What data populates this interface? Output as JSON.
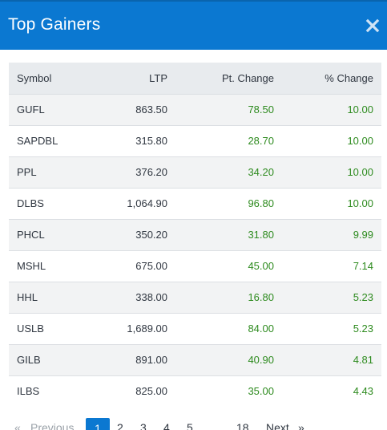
{
  "modal": {
    "title": "Top Gainers"
  },
  "table": {
    "headers": {
      "symbol": "Symbol",
      "ltp": "LTP",
      "pt_change": "Pt. Change",
      "pct_change": "% Change"
    },
    "rows": [
      {
        "symbol": "GUFL",
        "ltp": "863.50",
        "pt_change": "78.50",
        "pct_change": "10.00"
      },
      {
        "symbol": "SAPDBL",
        "ltp": "315.80",
        "pt_change": "28.70",
        "pct_change": "10.00"
      },
      {
        "symbol": "PPL",
        "ltp": "376.20",
        "pt_change": "34.20",
        "pct_change": "10.00"
      },
      {
        "symbol": "DLBS",
        "ltp": "1,064.90",
        "pt_change": "96.80",
        "pct_change": "10.00"
      },
      {
        "symbol": "PHCL",
        "ltp": "350.20",
        "pt_change": "31.80",
        "pct_change": "9.99"
      },
      {
        "symbol": "MSHL",
        "ltp": "675.00",
        "pt_change": "45.00",
        "pct_change": "7.14"
      },
      {
        "symbol": "HHL",
        "ltp": "338.00",
        "pt_change": "16.80",
        "pct_change": "5.23"
      },
      {
        "symbol": "USLB",
        "ltp": "1,689.00",
        "pt_change": "84.00",
        "pct_change": "5.23"
      },
      {
        "symbol": "GILB",
        "ltp": "891.00",
        "pt_change": "40.90",
        "pct_change": "4.81"
      },
      {
        "symbol": "ILBS",
        "ltp": "825.00",
        "pt_change": "35.00",
        "pct_change": "4.43"
      }
    ]
  },
  "pagination": {
    "prev_arrow": "«",
    "prev_label": "Previous",
    "pages": [
      "1",
      "2",
      "3",
      "4",
      "5"
    ],
    "active_page": "1",
    "last_page": "18",
    "next_label": "Next",
    "next_arrow": "»"
  },
  "colors": {
    "header_bg": "#0b78d1",
    "positive": "#2e8b1f",
    "table_header_bg": "#e8ebee"
  }
}
